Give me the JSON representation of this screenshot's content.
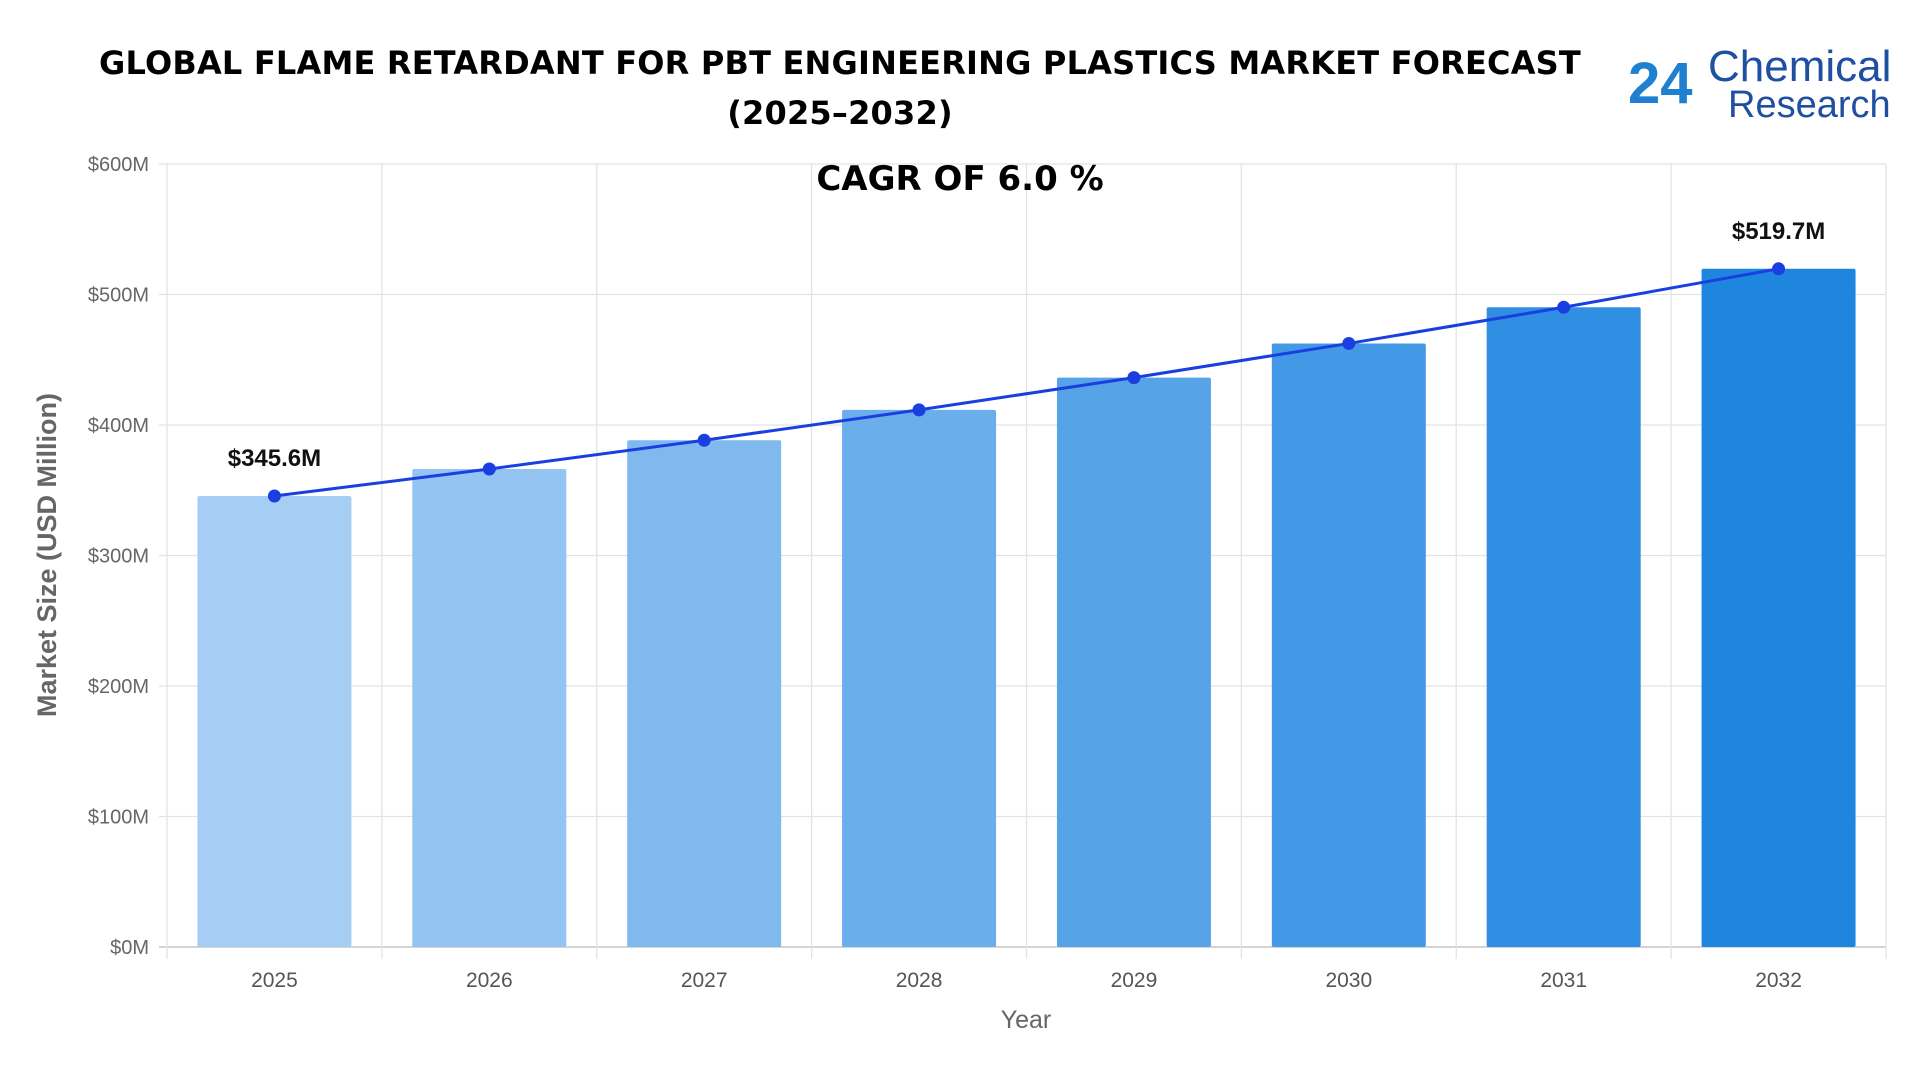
{
  "header": {
    "title_line1": "GLOBAL FLAME RETARDANT FOR PBT ENGINEERING PLASTICS MARKET FORECAST",
    "title_line2": "(2025–2032)"
  },
  "logo": {
    "number": "24",
    "line1": "Chemical",
    "line2": "Research",
    "color": "#1f7fd0"
  },
  "chart_data": {
    "type": "bar",
    "title": "GLOBAL FLAME RETARDANT FOR PBT ENGINEERING PLASTICS MARKET FORECAST (2025–2032)",
    "subtitle": "CAGR OF 6.0 %",
    "xlabel": "Year",
    "ylabel": "Market Size (USD Million)",
    "ylim": [
      0,
      600
    ],
    "yticks": [
      0,
      100,
      200,
      300,
      400,
      500,
      600
    ],
    "ytick_labels": [
      "$0M",
      "$100M",
      "$200M",
      "$300M",
      "$400M",
      "$500M",
      "$600M"
    ],
    "categories": [
      "2025",
      "2026",
      "2027",
      "2028",
      "2029",
      "2030",
      "2031",
      "2032"
    ],
    "values": [
      345.6,
      366.3,
      388.3,
      411.6,
      436.3,
      462.5,
      490.2,
      519.7
    ],
    "bar_colors": [
      "#a6cdf4",
      "#93c4f2",
      "#7fb9ee",
      "#6aaeeb",
      "#57a3e8",
      "#4399e6",
      "#318fe3",
      "#1f86e0"
    ],
    "line_color": "#1a3fe0",
    "data_labels": [
      {
        "category": "2025",
        "text": "$345.6M"
      },
      {
        "category": "2032",
        "text": "$519.7M"
      }
    ],
    "grid": true
  }
}
